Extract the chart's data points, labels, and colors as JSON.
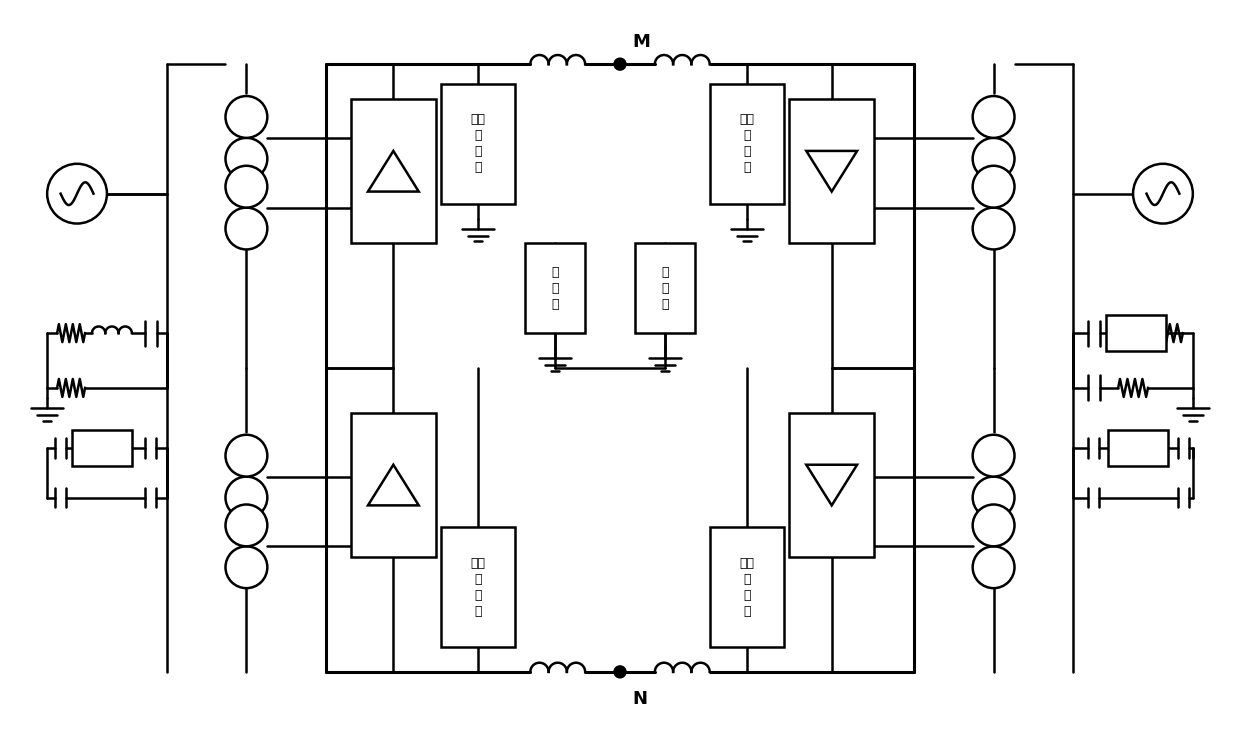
{
  "figsize": [
    12.4,
    7.38
  ],
  "dpi": 100,
  "bg": "#ffffff",
  "lw": 1.8,
  "lw_bus": 2.2,
  "label_M": "M",
  "label_N": "N",
  "dc_filter_label": "直流\n滤\n波\n器",
  "ground_elec_label": "接\n地\n极",
  "font": "SimHei",
  "fontsize_label": 9,
  "fontsize_MN": 13
}
